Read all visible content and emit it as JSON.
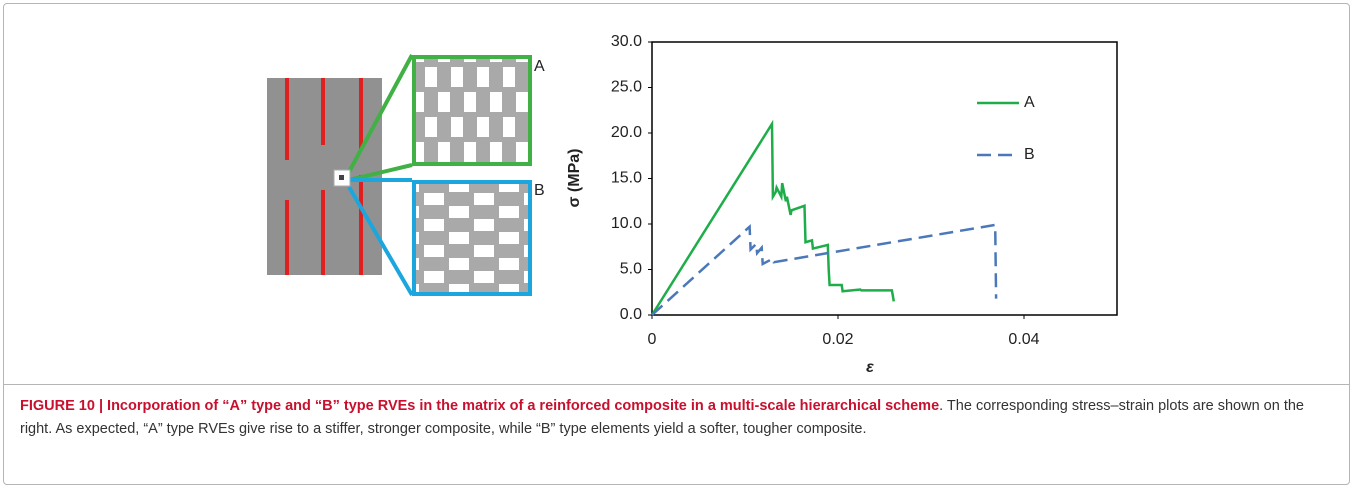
{
  "chart_data": {
    "type": "line",
    "y_label": "σ (MPa)",
    "x_label": "ε",
    "xlim": [
      0,
      0.05
    ],
    "xticks": [
      0,
      0.02,
      0.04
    ],
    "ylim": [
      0,
      30
    ],
    "yticks": [
      {
        "value": 0,
        "label": "0.0"
      },
      {
        "value": 5,
        "label": "5.0"
      },
      {
        "value": 10,
        "label": "10.0"
      },
      {
        "value": 15,
        "label": "15.0"
      },
      {
        "value": 20,
        "label": "20.0"
      },
      {
        "value": 25,
        "label": "25.0"
      },
      {
        "value": 30,
        "label": "30.0"
      }
    ],
    "legend": "upper right",
    "series": [
      {
        "name": "A",
        "color": "#1fad4a",
        "line_style": "solid",
        "x": [
          0,
          0.0129,
          0.013,
          0.0133,
          0.0134,
          0.0139,
          0.014,
          0.0144,
          0.0145,
          0.0149,
          0.015,
          0.0164,
          0.0165,
          0.0172,
          0.0173,
          0.0189,
          0.019,
          0.0191,
          0.0204,
          0.0205,
          0.0224,
          0.0225,
          0.0258,
          0.026
        ],
        "values": [
          0,
          21.0,
          13.0,
          13.5,
          14.0,
          13.0,
          14.5,
          12.5,
          13.0,
          11.0,
          11.5,
          12.0,
          8.0,
          8.2,
          7.3,
          7.7,
          5.0,
          3.3,
          3.3,
          2.6,
          2.8,
          2.7,
          2.7,
          1.5
        ]
      },
      {
        "name": "B",
        "color": "#4a78b8",
        "line_style": "dashed",
        "x": [
          0,
          0.0105,
          0.0106,
          0.0112,
          0.0113,
          0.0118,
          0.0119,
          0.013,
          0.0131,
          0.0369,
          0.037
        ],
        "values": [
          0,
          9.7,
          7.2,
          7.8,
          6.8,
          7.4,
          5.6,
          6.2,
          5.8,
          9.9,
          1.8
        ]
      }
    ]
  },
  "diagram": {
    "labels": [
      "A",
      "B"
    ]
  },
  "caption": {
    "title": "FIGURE 10 | Incorporation of “A” type and “B” type RVEs in the matrix of a reinforced composite in a multi-scale hierarchical scheme",
    "text": ". The corresponding stress–strain plots are shown on the right. As expected, “A” type RVEs give rise to a stiffer, stronger composite, while “B” type elements yield a softer, tougher composite."
  }
}
